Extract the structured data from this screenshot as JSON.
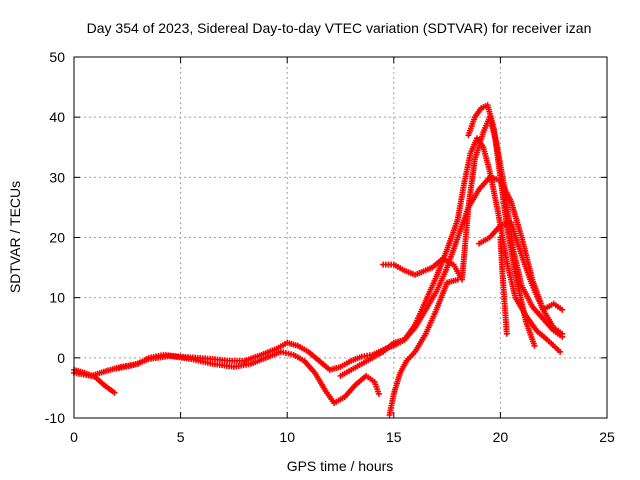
{
  "chart_data": {
    "type": "scatter",
    "title": "Day 354 of 2023, Sidereal Day-to-day VTEC variation (SDTVAR) for receiver izan",
    "xlabel": "GPS time / hours",
    "ylabel": "SDTVAR / TECUs",
    "xlim": [
      0,
      25
    ],
    "ylim": [
      -10,
      50
    ],
    "xticks": [
      0,
      5,
      10,
      15,
      20,
      25
    ],
    "yticks": [
      -10,
      0,
      10,
      20,
      30,
      40,
      50
    ],
    "grid": true,
    "marker": "+",
    "color": "#ff0000",
    "series": [
      {
        "name": "track-1",
        "points": [
          [
            0.0,
            -2.0
          ],
          [
            0.5,
            -2.5
          ],
          [
            1.0,
            -3.2
          ],
          [
            1.4,
            -4.5
          ],
          [
            1.9,
            -5.8
          ]
        ]
      },
      {
        "name": "track-2",
        "points": [
          [
            0.0,
            -2.5
          ],
          [
            0.8,
            -3.0
          ],
          [
            1.5,
            -2.2
          ],
          [
            2.2,
            -1.5
          ],
          [
            3.0,
            -1.0
          ],
          [
            3.5,
            0.0
          ],
          [
            4.2,
            0.5
          ],
          [
            5.0,
            0.2
          ],
          [
            5.8,
            0.0
          ],
          [
            6.5,
            -0.2
          ],
          [
            7.3,
            -0.5
          ],
          [
            8.0,
            -0.5
          ],
          [
            8.8,
            0.5
          ],
          [
            9.5,
            1.5
          ],
          [
            10.0,
            2.5
          ],
          [
            10.5,
            2.0
          ],
          [
            11.0,
            1.0
          ],
          [
            11.5,
            -0.5
          ],
          [
            12.0,
            -2.0
          ],
          [
            12.5,
            -1.5
          ],
          [
            13.0,
            -0.5
          ],
          [
            13.5,
            0.2
          ],
          [
            14.0,
            0.5
          ],
          [
            14.6,
            1.5
          ],
          [
            15.0,
            2.0
          ],
          [
            15.5,
            3.0
          ],
          [
            16.0,
            5.0
          ],
          [
            16.5,
            8.0
          ],
          [
            17.0,
            11.0
          ],
          [
            17.5,
            15.0
          ],
          [
            18.0,
            20.0
          ],
          [
            18.5,
            25.0
          ],
          [
            19.0,
            28.0
          ],
          [
            19.5,
            30.0
          ],
          [
            20.0,
            29.5
          ],
          [
            20.5,
            26.0
          ],
          [
            21.0,
            20.0
          ],
          [
            21.5,
            13.0
          ],
          [
            22.0,
            8.0
          ],
          [
            22.5,
            5.0
          ],
          [
            22.9,
            4.0
          ]
        ]
      },
      {
        "name": "track-3",
        "points": [
          [
            2.0,
            -1.8
          ],
          [
            2.8,
            -1.2
          ],
          [
            3.5,
            -0.2
          ],
          [
            4.5,
            0.3
          ],
          [
            5.5,
            -0.2
          ],
          [
            6.5,
            -1.0
          ],
          [
            7.5,
            -1.5
          ],
          [
            8.3,
            -1.0
          ],
          [
            9.0,
            0.0
          ],
          [
            9.7,
            1.0
          ],
          [
            10.3,
            0.5
          ],
          [
            10.8,
            -0.5
          ],
          [
            11.3,
            -2.5
          ],
          [
            11.8,
            -5.5
          ],
          [
            12.2,
            -7.5
          ],
          [
            12.7,
            -6.5
          ],
          [
            13.2,
            -4.5
          ],
          [
            13.7,
            -3.0
          ],
          [
            14.1,
            -4.0
          ],
          [
            14.3,
            -6.0
          ]
        ]
      },
      {
        "name": "track-4",
        "points": [
          [
            14.8,
            -9.5
          ],
          [
            15.0,
            -6.0
          ],
          [
            15.3,
            -2.5
          ],
          [
            15.6,
            -0.5
          ],
          [
            16.0,
            1.0
          ],
          [
            16.5,
            4.0
          ],
          [
            17.0,
            8.0
          ],
          [
            17.5,
            12.5
          ],
          [
            18.0,
            13.0
          ]
        ]
      },
      {
        "name": "track-5",
        "points": [
          [
            14.5,
            15.5
          ],
          [
            15.0,
            15.5
          ],
          [
            15.5,
            14.5
          ],
          [
            16.0,
            13.8
          ],
          [
            16.8,
            15.0
          ],
          [
            17.3,
            16.5
          ],
          [
            17.8,
            15.5
          ],
          [
            18.2,
            13.0
          ],
          [
            18.5,
            25.0
          ],
          [
            18.8,
            33.0
          ],
          [
            19.2,
            37.5
          ],
          [
            19.5,
            40.0
          ],
          [
            19.8,
            36.0
          ],
          [
            20.2,
            28.0
          ],
          [
            20.6,
            18.0
          ],
          [
            21.0,
            12.0
          ],
          [
            21.5,
            8.5
          ],
          [
            22.0,
            6.5
          ],
          [
            22.5,
            4.5
          ],
          [
            22.9,
            3.5
          ]
        ]
      },
      {
        "name": "track-6",
        "points": [
          [
            12.5,
            -3.0
          ],
          [
            13.0,
            -2.0
          ],
          [
            13.5,
            -1.0
          ],
          [
            14.0,
            0.0
          ],
          [
            14.5,
            1.0
          ],
          [
            15.0,
            2.5
          ],
          [
            15.5,
            3.0
          ],
          [
            16.0,
            5.5
          ],
          [
            16.5,
            9.5
          ],
          [
            17.0,
            13.5
          ],
          [
            17.5,
            18.0
          ],
          [
            18.0,
            23.0
          ],
          [
            18.3,
            29.0
          ],
          [
            18.6,
            34.0
          ],
          [
            18.9,
            36.5
          ],
          [
            19.2,
            35.0
          ],
          [
            19.5,
            31.0
          ],
          [
            19.9,
            24.0
          ],
          [
            20.3,
            16.0
          ],
          [
            20.7,
            10.0
          ],
          [
            21.2,
            7.0
          ],
          [
            21.7,
            4.5
          ],
          [
            22.2,
            3.0
          ],
          [
            22.8,
            1.0
          ]
        ]
      },
      {
        "name": "track-7",
        "points": [
          [
            18.5,
            37.0
          ],
          [
            18.8,
            40.0
          ],
          [
            19.1,
            41.5
          ],
          [
            19.4,
            42.0
          ],
          [
            19.7,
            38.0
          ],
          [
            20.0,
            30.0
          ],
          [
            20.3,
            22.0
          ],
          [
            20.7,
            14.0
          ],
          [
            21.2,
            6.0
          ],
          [
            21.6,
            2.0
          ]
        ]
      },
      {
        "name": "track-8",
        "points": [
          [
            19.0,
            19.0
          ],
          [
            19.5,
            20.0
          ],
          [
            20.0,
            22.0
          ],
          [
            20.5,
            22.5
          ],
          [
            21.0,
            17.0
          ],
          [
            21.5,
            12.0
          ],
          [
            22.0,
            8.0
          ],
          [
            22.5,
            9.0
          ],
          [
            22.9,
            8.0
          ]
        ]
      },
      {
        "name": "track-9",
        "points": [
          [
            20.0,
            20.0
          ],
          [
            20.1,
            14.0
          ],
          [
            20.2,
            9.0
          ],
          [
            20.3,
            4.0
          ]
        ]
      }
    ]
  }
}
